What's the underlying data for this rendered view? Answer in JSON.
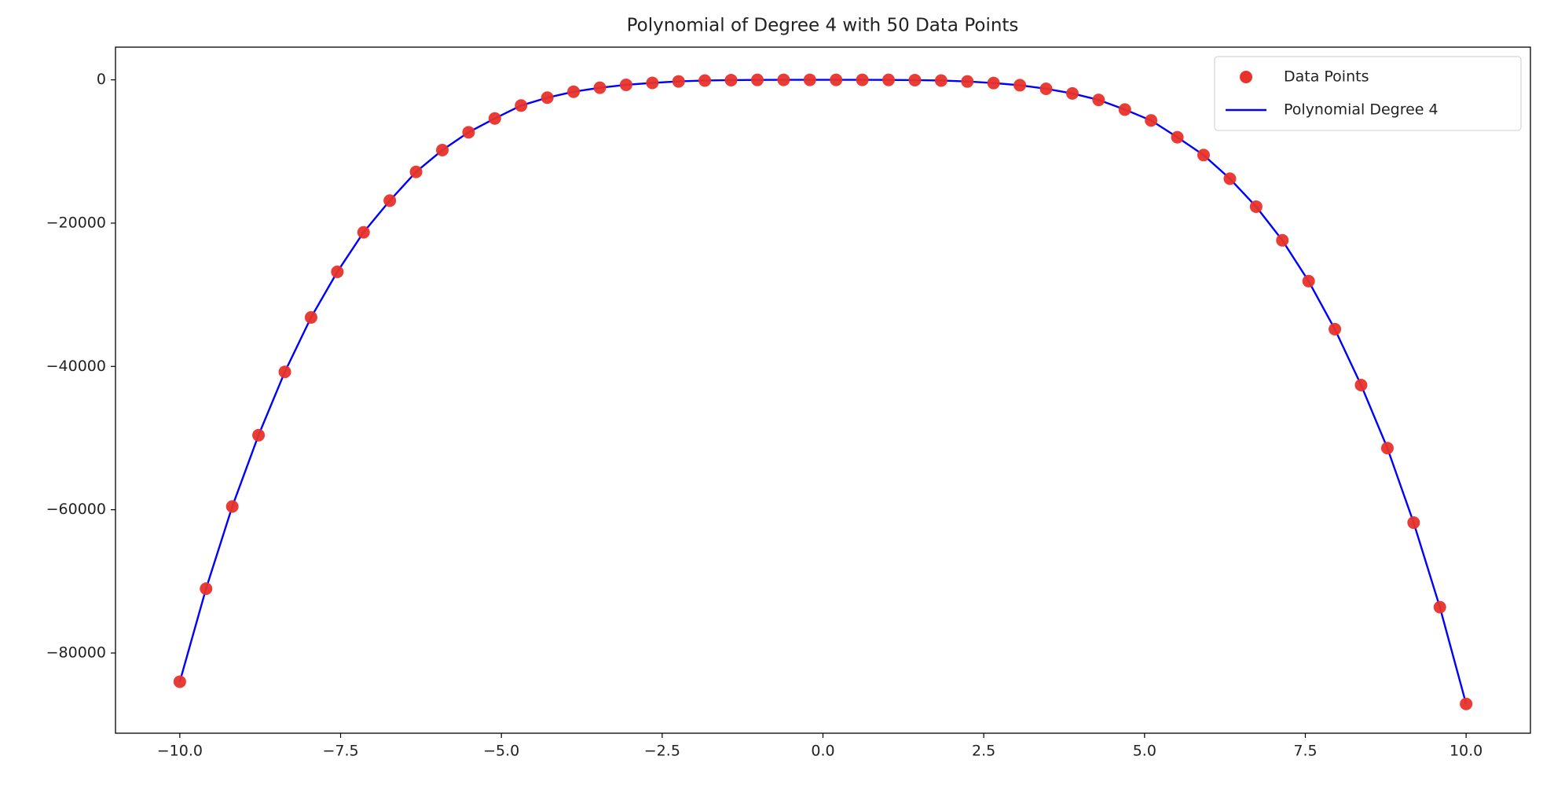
{
  "chart_data": {
    "type": "scatter_line",
    "title": "Polynomial of Degree 4 with 50 Data Points",
    "xlim": [
      -11,
      11
    ],
    "ylim": [
      -91190,
      4560
    ],
    "xticks": [
      {
        "value": -10,
        "label": "−10.0"
      },
      {
        "value": -7.5,
        "label": "−7.5"
      },
      {
        "value": -5,
        "label": "−5.0"
      },
      {
        "value": -2.5,
        "label": "−2.5"
      },
      {
        "value": 0,
        "label": "0.0"
      },
      {
        "value": 2.5,
        "label": "2.5"
      },
      {
        "value": 5,
        "label": "5.0"
      },
      {
        "value": 7.5,
        "label": "7.5"
      },
      {
        "value": 10,
        "label": "10.0"
      }
    ],
    "yticks": [
      {
        "value": -80000,
        "label": "−80000"
      },
      {
        "value": -60000,
        "label": "−60000"
      },
      {
        "value": -40000,
        "label": "−40000"
      },
      {
        "value": -20000,
        "label": "−20000"
      },
      0
    ],
    "legend": "upper right",
    "series": [
      {
        "name": "Data Points",
        "kind": "scatter",
        "color": "#e8322a",
        "x": [
          -10,
          -9.592,
          -9.184,
          -8.776,
          -8.367,
          -7.959,
          -7.551,
          -7.143,
          -6.735,
          -6.327,
          -5.918,
          -5.51,
          -5.102,
          -4.694,
          -4.286,
          -3.878,
          -3.469,
          -3.061,
          -2.653,
          -2.245,
          -1.837,
          -1.429,
          -1.02,
          -0.612,
          -0.204,
          0.204,
          0.612,
          1.02,
          1.429,
          1.837,
          2.245,
          2.653,
          3.061,
          3.469,
          3.878,
          4.286,
          4.694,
          5.102,
          5.51,
          5.918,
          6.327,
          6.735,
          7.143,
          7.551,
          7.959,
          8.367,
          8.776,
          9.184,
          9.592,
          10
        ],
        "values": [
          -84000,
          -71020,
          -59550,
          -49600,
          -40760,
          -33160,
          -26800,
          -21280,
          -16860,
          -12850,
          -9810,
          -7320,
          -5390,
          -3590,
          -2490,
          -1660,
          -1105,
          -700,
          -430,
          -220,
          -100,
          -40,
          -10,
          -1,
          0,
          0,
          -1,
          -10,
          -40,
          -100,
          -230,
          -450,
          -750,
          -1250,
          -1900,
          -2800,
          -4150,
          -5670,
          -8010,
          -10500,
          -13800,
          -17700,
          -22400,
          -28100,
          -34800,
          -42600,
          -51400,
          -61800,
          -73600,
          -87100
        ]
      },
      {
        "name": "Polynomial Degree 4",
        "kind": "line",
        "color": "#0000ff",
        "x": [
          -10,
          -9.592,
          -9.184,
          -8.776,
          -8.367,
          -7.959,
          -7.551,
          -7.143,
          -6.735,
          -6.327,
          -5.918,
          -5.51,
          -5.102,
          -4.694,
          -4.286,
          -3.878,
          -3.469,
          -3.061,
          -2.653,
          -2.245,
          -1.837,
          -1.429,
          -1.02,
          -0.612,
          -0.204,
          0.204,
          0.612,
          1.02,
          1.429,
          1.837,
          2.245,
          2.653,
          3.061,
          3.469,
          3.878,
          4.286,
          4.694,
          5.102,
          5.51,
          5.918,
          6.327,
          6.735,
          7.143,
          7.551,
          7.959,
          8.367,
          8.776,
          9.184,
          9.592,
          10
        ],
        "values": [
          -84000,
          -71020,
          -59550,
          -49600,
          -40760,
          -33160,
          -26800,
          -21280,
          -16860,
          -12850,
          -9810,
          -7320,
          -5390,
          -3590,
          -2490,
          -1660,
          -1105,
          -700,
          -430,
          -220,
          -100,
          -40,
          -10,
          -1,
          0,
          0,
          -1,
          -10,
          -40,
          -100,
          -230,
          -450,
          -750,
          -1250,
          -1900,
          -2800,
          -4150,
          -5670,
          -8010,
          -10500,
          -13800,
          -17700,
          -22400,
          -28100,
          -34800,
          -42600,
          -51400,
          -61800,
          -73600,
          -87100
        ]
      }
    ]
  }
}
